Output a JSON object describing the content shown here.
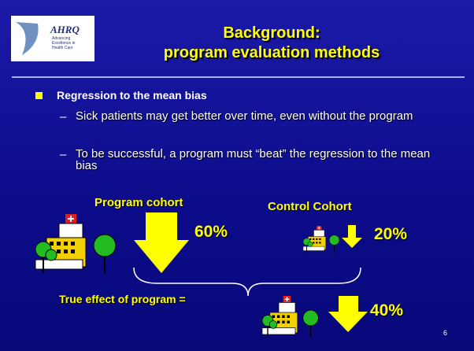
{
  "header": {
    "title_line1": "Background:",
    "title_line2": "program evaluation methods",
    "logo_text": "AHRQ",
    "logo_subtext": [
      "Advancing",
      "Excellence in",
      "Health Care"
    ]
  },
  "bullets": [
    {
      "text": "Regression to the mean bias",
      "marker": "–",
      "subitems": [
        "Sick patients may get better over time, even without the program",
        "To be successful, a program must “beat” the regression to the mean bias"
      ]
    }
  ],
  "diagram": {
    "program_label": "Program cohort",
    "program_percent": "60%",
    "control_label": "Control Cohort",
    "control_percent": "20%",
    "effect_label": "True effect of program =",
    "effect_percent": "40%"
  },
  "slide_number": "6"
}
